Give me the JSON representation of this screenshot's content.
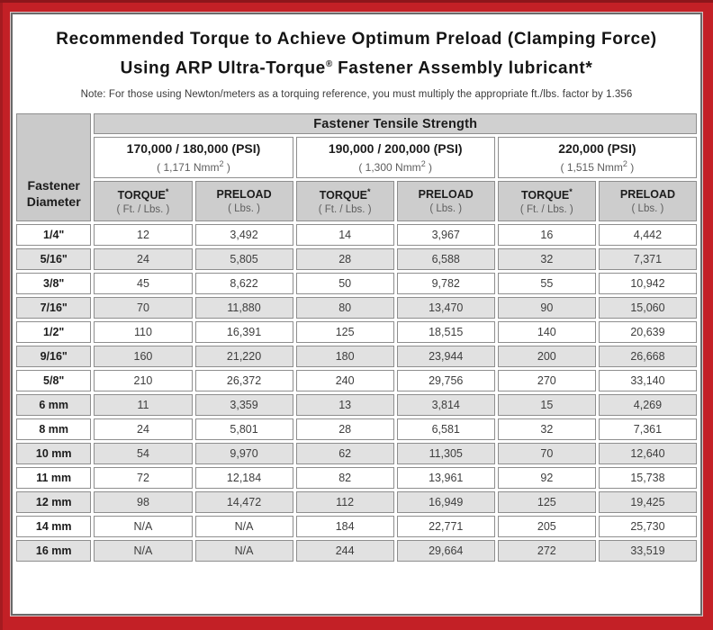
{
  "title": {
    "line1": "Recommended Torque to Achieve Optimum Preload (Clamping Force)",
    "line2_pre": "Using ARP Ultra-Torque",
    "line2_sup": "®",
    "line2_post": " Fastener Assembly lubricant*"
  },
  "note": "Note: For those using Newton/meters as a torquing reference, you must multiply the appropriate ft./lbs. factor by 1.356",
  "colors": {
    "frame_red": "#c32026",
    "frame_dark_accent": "#8c161b",
    "card_border_gray": "#6a6a6a",
    "header_band_gray": "#d0d0d0",
    "column_header_gray": "#cdcdcd",
    "shaded_row_gray": "#e1e1e1",
    "cell_border_gray": "#8e8e8e",
    "subtext_gray": "#5e5e5e"
  },
  "table": {
    "corner_header": {
      "line1": "Fastener",
      "line2": "Diameter"
    },
    "tensile_header": "Fastener Tensile Strength",
    "groups": [
      {
        "psi": "170,000 / 180,000 (PSI)",
        "nmm_pre": "( 1,171 Nmm",
        "nmm_sup": "2",
        "nmm_post": " )"
      },
      {
        "psi": "190,000 / 200,000 (PSI)",
        "nmm_pre": "( 1,300 Nmm",
        "nmm_sup": "2",
        "nmm_post": " )"
      },
      {
        "psi": "220,000 (PSI)",
        "nmm_pre": "( 1,515 Nmm",
        "nmm_sup": "2",
        "nmm_post": " )"
      }
    ],
    "col_headers": {
      "torque_label": "TORQUE",
      "torque_sup": "*",
      "torque_sub": "( Ft. / Lbs. )",
      "preload_label": "PRELOAD",
      "preload_sub": "( Lbs. )"
    },
    "rows": [
      {
        "diameter": "1/4\"",
        "values": [
          "12",
          "3,492",
          "14",
          "3,967",
          "16",
          "4,442"
        ]
      },
      {
        "diameter": "5/16\"",
        "values": [
          "24",
          "5,805",
          "28",
          "6,588",
          "32",
          "7,371"
        ]
      },
      {
        "diameter": "3/8\"",
        "values": [
          "45",
          "8,622",
          "50",
          "9,782",
          "55",
          "10,942"
        ]
      },
      {
        "diameter": "7/16\"",
        "values": [
          "70",
          "11,880",
          "80",
          "13,470",
          "90",
          "15,060"
        ]
      },
      {
        "diameter": "1/2\"",
        "values": [
          "110",
          "16,391",
          "125",
          "18,515",
          "140",
          "20,639"
        ]
      },
      {
        "diameter": "9/16\"",
        "values": [
          "160",
          "21,220",
          "180",
          "23,944",
          "200",
          "26,668"
        ]
      },
      {
        "diameter": "5/8\"",
        "values": [
          "210",
          "26,372",
          "240",
          "29,756",
          "270",
          "33,140"
        ]
      },
      {
        "diameter": "6 mm",
        "values": [
          "11",
          "3,359",
          "13",
          "3,814",
          "15",
          "4,269"
        ]
      },
      {
        "diameter": "8 mm",
        "values": [
          "24",
          "5,801",
          "28",
          "6,581",
          "32",
          "7,361"
        ]
      },
      {
        "diameter": "10 mm",
        "values": [
          "54",
          "9,970",
          "62",
          "11,305",
          "70",
          "12,640"
        ]
      },
      {
        "diameter": "11 mm",
        "values": [
          "72",
          "12,184",
          "82",
          "13,961",
          "92",
          "15,738"
        ]
      },
      {
        "diameter": "12 mm",
        "values": [
          "98",
          "14,472",
          "112",
          "16,949",
          "125",
          "19,425"
        ]
      },
      {
        "diameter": "14 mm",
        "values": [
          "N/A",
          "N/A",
          "184",
          "22,771",
          "205",
          "25,730"
        ]
      },
      {
        "diameter": "16 mm",
        "values": [
          "N/A",
          "N/A",
          "244",
          "29,664",
          "272",
          "33,519"
        ]
      }
    ]
  }
}
